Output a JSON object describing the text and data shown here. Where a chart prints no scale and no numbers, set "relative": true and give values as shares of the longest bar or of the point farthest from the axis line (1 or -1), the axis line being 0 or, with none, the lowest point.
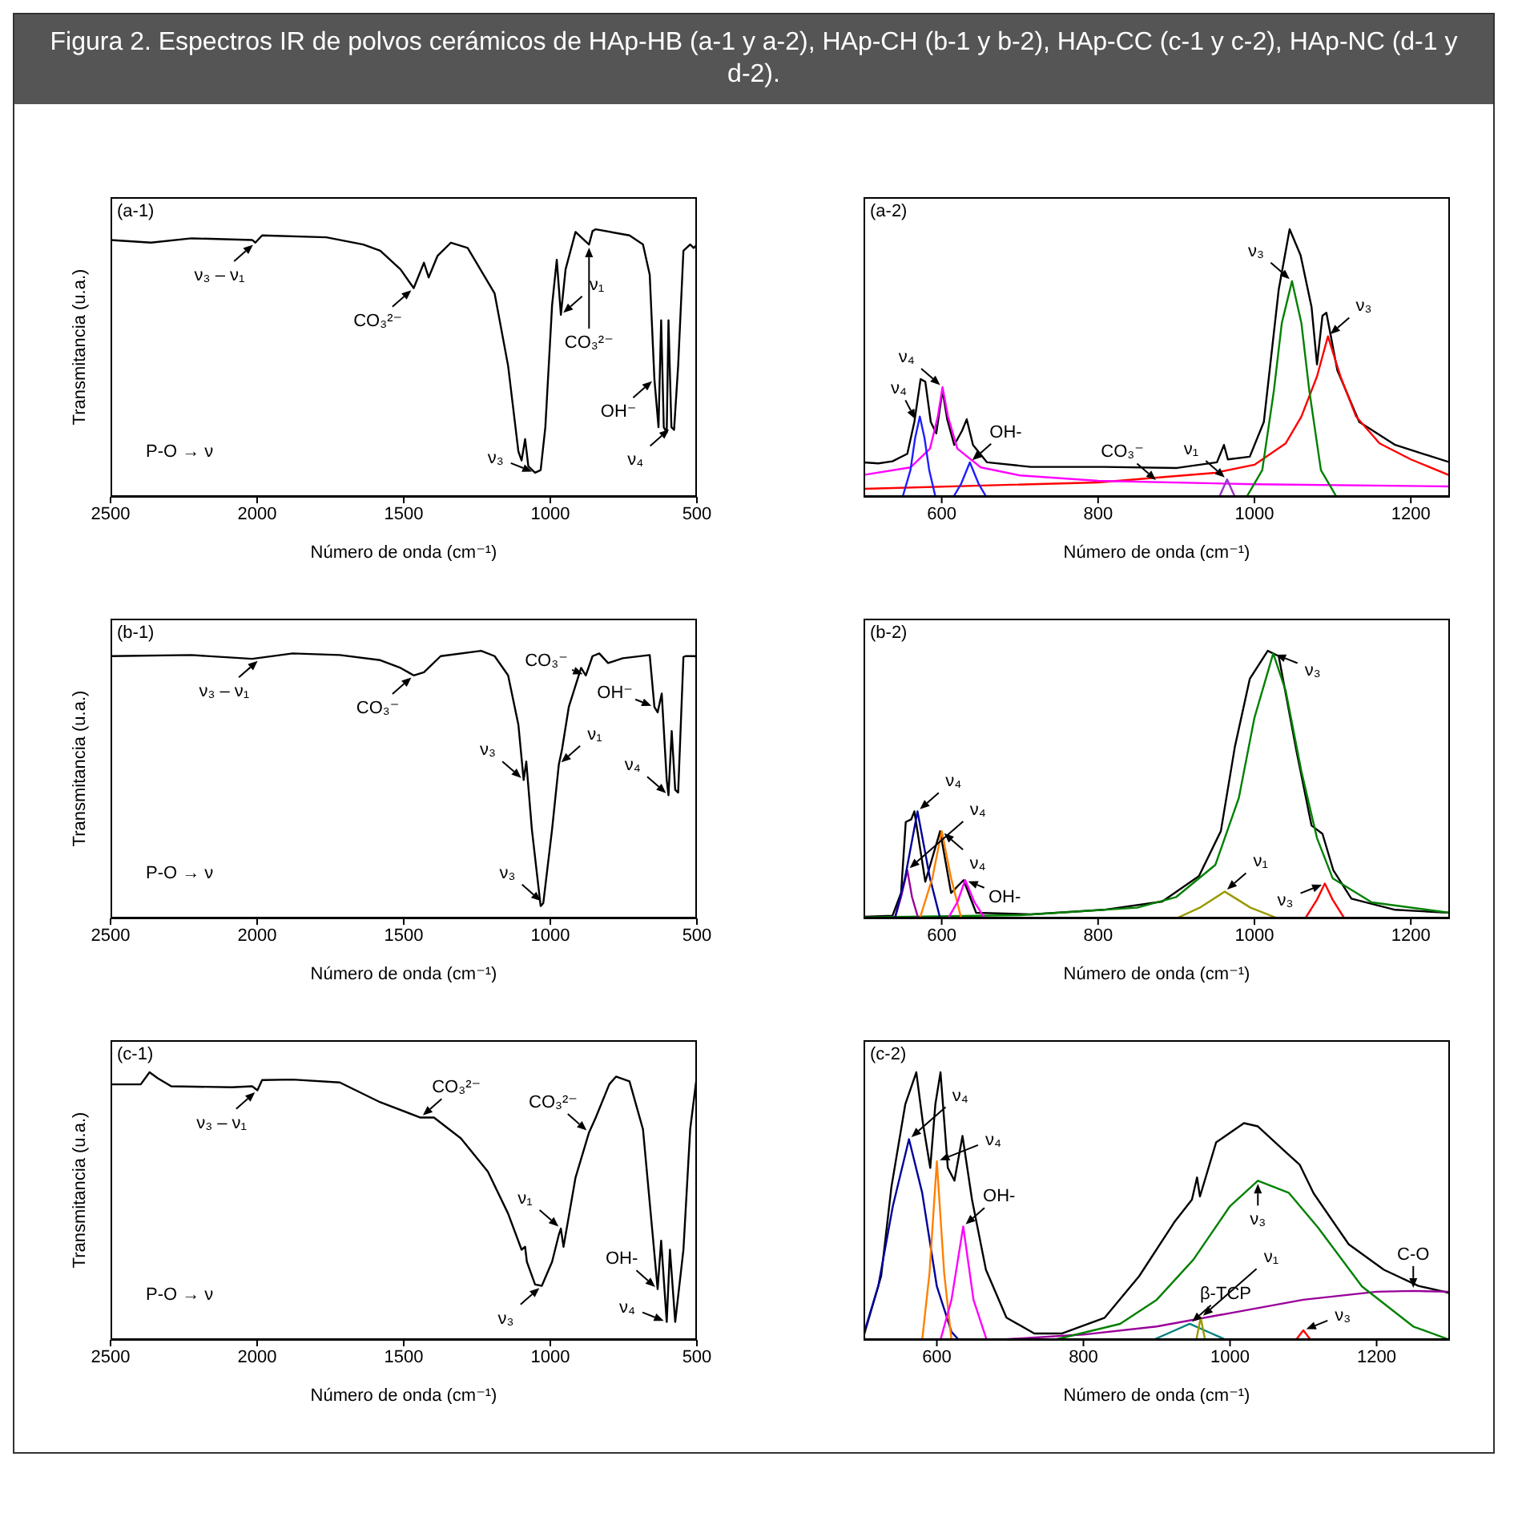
{
  "chart_data": [
    {
      "type": "line",
      "title": "Figura 2. Espectros IR de polvos cerámicos de HAp-HB (a-1 y a-2), HAp-CH (b-1 y b-2), HAp-CC (c-1 y c-2), HAp-NC (d-1 y d-2).",
      "subtitle": "(a-1)",
      "xlabel": "Número de onda (cm⁻¹)",
      "ylabel": "Transmitancia (u.a.)",
      "relative": true,
      "tick_labels": "x",
      "xlim": [
        2500,
        500
      ],
      "xticks": [
        2500,
        2000,
        1500,
        1000,
        500
      ],
      "x": [
        2500,
        2362,
        2224,
        2017,
        2006,
        1983,
        1764,
        1638,
        1580,
        1511,
        1466,
        1431,
        1415,
        1385,
        1339,
        1282,
        1190,
        1144,
        1109,
        1098,
        1086,
        1075,
        1052,
        1033,
        1017,
        994,
        978,
        964,
        948,
        914,
        891,
        868,
        856,
        845,
        730,
        684,
        661,
        645,
        631,
        622,
        613,
        603,
        597,
        587,
        578,
        564,
        546,
        523,
        511,
        500
      ],
      "series": [
        {
          "color": "#000000",
          "values": [
            0.96,
            0.95,
            0.966,
            0.96,
            0.95,
            0.977,
            0.97,
            0.943,
            0.92,
            0.85,
            0.78,
            0.875,
            0.82,
            0.9,
            0.95,
            0.93,
            0.76,
            0.49,
            0.17,
            0.136,
            0.216,
            0.114,
            0.09,
            0.1,
            0.26,
            0.716,
            0.886,
            0.68,
            0.85,
            0.99,
            0.966,
            0.943,
            0.993,
            1.0,
            0.977,
            0.943,
            0.83,
            0.44,
            0.26,
            0.66,
            0.26,
            0.24,
            0.66,
            0.26,
            0.25,
            0.49,
            0.92,
            0.943,
            0.93,
            0.943
          ]
        }
      ],
      "annotations": [
        {
          "text": "ν₃ – ν₁",
          "x": 2006,
          "y": 0.95
        },
        {
          "text": "CO₃²⁻",
          "x": 1466,
          "y": 0.78
        },
        {
          "text": "ν₃",
          "x": 1052,
          "y": 0.09
        },
        {
          "text": "ν₁",
          "x": 964,
          "y": 0.68
        },
        {
          "text": "CO₃²⁻",
          "x": 868,
          "y": 0.943
        },
        {
          "text": "OH⁻",
          "x": 645,
          "y": 0.44
        },
        {
          "text": "ν₄",
          "x": 587,
          "y": 0.26
        },
        "P-O → ν"
      ]
    },
    {
      "type": "line",
      "subtitle": "(a-2)",
      "xlabel": "Número de onda (cm⁻¹)",
      "relative": true,
      "tick_labels": "x",
      "xlim": [
        500,
        1250
      ],
      "xticks": [
        600,
        800,
        1000,
        1200
      ],
      "series": [
        {
          "color": "#000000",
          "x": [
            500,
            519,
            537,
            556,
            565,
            573,
            579,
            586,
            593,
            601,
            607,
            616,
            626,
            632,
            640,
            658,
            714,
            807,
            901,
            952,
            961,
            966,
            994,
            1012,
            1031,
            1045,
            1059,
            1073,
            1080,
            1087,
            1092,
            1106,
            1134,
            1180,
            1250
          ],
          "values": [
            0.129,
            0.125,
            0.133,
            0.161,
            0.28,
            0.44,
            0.43,
            0.28,
            0.237,
            0.398,
            0.29,
            0.194,
            0.247,
            0.29,
            0.194,
            0.129,
            0.112,
            0.112,
            0.108,
            0.129,
            0.194,
            0.14,
            0.15,
            0.28,
            0.774,
            1.0,
            0.903,
            0.71,
            0.495,
            0.677,
            0.688,
            0.473,
            0.28,
            0.194,
            0.129
          ]
        },
        {
          "color": "#ff0000",
          "x": [
            500,
            800,
            950,
            1000,
            1040,
            1060,
            1080,
            1094,
            1110,
            1130,
            1160,
            1200,
            1250
          ],
          "values": [
            0.03,
            0.054,
            0.09,
            0.12,
            0.2,
            0.3,
            0.45,
            0.6,
            0.45,
            0.3,
            0.2,
            0.14,
            0.08
          ]
        },
        {
          "color": "#ff00ff",
          "x": [
            500,
            560,
            585,
            595,
            601,
            608,
            620,
            650,
            700,
            800,
            1000,
            1250
          ],
          "values": [
            0.082,
            0.11,
            0.18,
            0.3,
            0.41,
            0.3,
            0.18,
            0.11,
            0.08,
            0.06,
            0.047,
            0.039
          ]
        },
        {
          "color": "#1f1fff",
          "x": [
            550,
            560,
            566,
            572,
            578,
            584,
            592
          ],
          "values": [
            0,
            0.1,
            0.22,
            0.3,
            0.22,
            0.1,
            0
          ]
        },
        {
          "color": "#1f1fff",
          "x": [
            615,
            625,
            636,
            647,
            657
          ],
          "values": [
            0,
            0.05,
            0.129,
            0.05,
            0
          ]
        },
        {
          "color": "#9933cc",
          "x": [
            955,
            965,
            975
          ],
          "values": [
            0,
            0.065,
            0
          ]
        },
        {
          "color": "#008000",
          "x": [
            990,
            1010,
            1025,
            1035,
            1048,
            1060,
            1070,
            1085,
            1105
          ],
          "values": [
            0,
            0.1,
            0.4,
            0.65,
            0.806,
            0.65,
            0.4,
            0.1,
            0
          ]
        }
      ],
      "annotations": [
        {
          "text": "ν₄",
          "x": 568,
          "y": 0.28
        },
        {
          "text": "ν₄",
          "x": 601,
          "y": 0.41
        },
        {
          "text": "OH-",
          "x": 636,
          "y": 0.129
        },
        {
          "text": "CO₃⁻",
          "x": 877,
          "y": 0.055
        },
        {
          "text": "ν₁",
          "x": 965,
          "y": 0.065
        },
        {
          "text": "ν₃",
          "x": 1048,
          "y": 0.806
        },
        {
          "text": "ν₃",
          "x": 1094,
          "y": 0.6
        }
      ]
    },
    {
      "type": "line",
      "subtitle": "(b-1)",
      "xlabel": "Número de onda (cm⁻¹)",
      "ylabel": "Transmitancia (u.a.)",
      "relative": true,
      "tick_labels": "x",
      "xlim": [
        2500,
        500
      ],
      "xticks": [
        2500,
        2000,
        1500,
        1000,
        500
      ],
      "x": [
        2500,
        2224,
        2017,
        1879,
        1718,
        1580,
        1511,
        1466,
        1431,
        1374,
        1236,
        1190,
        1144,
        1109,
        1091,
        1082,
        1063,
        1033,
        1024,
        994,
        971,
        960,
        937,
        895,
        879,
        856,
        833,
        803,
        753,
        661,
        645,
        634,
        620,
        603,
        597,
        586,
        574,
        564,
        546,
        539,
        505,
        500
      ],
      "series": [
        {
          "color": "#000000",
          "values": [
            0.98,
            0.984,
            0.97,
            0.99,
            0.984,
            0.965,
            0.936,
            0.908,
            0.92,
            0.98,
            1.0,
            0.98,
            0.908,
            0.724,
            0.517,
            0.586,
            0.333,
            0.046,
            0.057,
            0.333,
            0.575,
            0.632,
            0.79,
            0.936,
            0.908,
            0.98,
            0.99,
            0.954,
            0.972,
            0.984,
            0.79,
            0.77,
            0.84,
            0.517,
            0.46,
            0.7,
            0.48,
            0.47,
            0.977,
            0.98,
            0.98,
            0.97
          ]
        }
      ],
      "annotations": [
        {
          "text": "ν₃ – ν₁",
          "x": 1990,
          "y": 0.97
        },
        {
          "text": "CO₃⁻",
          "x": 1466,
          "y": 0.908
        },
        {
          "text": "ν₃",
          "x": 1091,
          "y": 0.517
        },
        {
          "text": "ν₃",
          "x": 1024,
          "y": 0.057
        },
        {
          "text": "ν₁",
          "x": 971,
          "y": 0.575
        },
        {
          "text": "CO₃⁻",
          "x": 879,
          "y": 0.908
        },
        {
          "text": "OH⁻",
          "x": 645,
          "y": 0.79
        },
        {
          "text": "ν₄",
          "x": 597,
          "y": 0.46
        },
        "P-O → ν"
      ]
    },
    {
      "type": "line",
      "subtitle": "(b-2)",
      "xlabel": "Número de onda (cm⁻¹)",
      "relative": true,
      "tick_labels": "x",
      "xlim": [
        500,
        1250
      ],
      "xticks": [
        600,
        800,
        1000,
        1200
      ],
      "series": [
        {
          "color": "#000000",
          "x": [
            500,
            537,
            548,
            554,
            561,
            565,
            579,
            598,
            612,
            628,
            644,
            714,
            807,
            882,
            929,
            957,
            975,
            994,
            1017,
            1031,
            1054,
            1073,
            1087,
            1101,
            1124,
            1180,
            1250
          ],
          "values": [
            0.006,
            0.01,
            0.095,
            0.36,
            0.37,
            0.4,
            0.137,
            0.326,
            0.095,
            0.143,
            0.021,
            0.015,
            0.032,
            0.063,
            0.158,
            0.326,
            0.642,
            0.895,
            1.0,
            0.98,
            0.621,
            0.347,
            0.316,
            0.179,
            0.074,
            0.032,
            0.021
          ]
        },
        {
          "color": "#008000",
          "x": [
            500,
            700,
            850,
            900,
            950,
            980,
            1000,
            1024,
            1040,
            1060,
            1080,
            1100,
            1150,
            1250
          ],
          "values": [
            0.004,
            0.012,
            0.04,
            0.08,
            0.2,
            0.45,
            0.75,
            0.99,
            0.85,
            0.55,
            0.3,
            0.15,
            0.06,
            0.021
          ]
        },
        {
          "color": "#999900",
          "x": [
            900,
            930,
            962,
            995,
            1030
          ],
          "values": [
            0,
            0.04,
            0.1,
            0.04,
            0
          ]
        },
        {
          "color": "#ff0000",
          "x": [
            1065,
            1080,
            1090,
            1100,
            1115
          ],
          "values": [
            0,
            0.07,
            0.13,
            0.07,
            0
          ]
        },
        {
          "color": "#990099",
          "x": [
            540,
            548,
            556,
            562,
            570
          ],
          "values": [
            0,
            0.08,
            0.18,
            0.08,
            0
          ]
        },
        {
          "color": "#000099",
          "x": [
            540,
            553,
            569,
            585,
            598
          ],
          "values": [
            0,
            0.15,
            0.4,
            0.15,
            0
          ]
        },
        {
          "color": "#ff8000",
          "x": [
            572,
            588,
            600,
            612,
            625
          ],
          "values": [
            0,
            0.15,
            0.326,
            0.15,
            0
          ]
        },
        {
          "color": "#ff00ff",
          "x": [
            608,
            620,
            630,
            642,
            655
          ],
          "values": [
            0,
            0.06,
            0.143,
            0.06,
            0
          ]
        }
      ],
      "annotations": [
        {
          "text": "ν₄",
          "x": 556,
          "y": 0.18
        },
        {
          "text": "ν₄",
          "x": 569,
          "y": 0.4
        },
        {
          "text": "ν₄",
          "x": 600,
          "y": 0.326
        },
        {
          "text": "OH-",
          "x": 630,
          "y": 0.143
        },
        {
          "text": "ν₁",
          "x": 962,
          "y": 0.1
        },
        {
          "text": "ν₃",
          "x": 1024,
          "y": 0.99
        },
        {
          "text": "ν₃",
          "x": 1090,
          "y": 0.13
        }
      ]
    },
    {
      "type": "line",
      "subtitle": "(c-1)",
      "xlabel": "Número de onda (cm⁻¹)",
      "ylabel": "Transmitancia (u.a.)",
      "relative": true,
      "tick_labels": "x",
      "xlim": [
        2500,
        500
      ],
      "xticks": [
        2500,
        2000,
        1500,
        1000,
        500
      ],
      "x": [
        2500,
        2397,
        2367,
        2339,
        2293,
        2086,
        2017,
        1999,
        1983,
        1879,
        1718,
        1580,
        1443,
        1397,
        1305,
        1213,
        1144,
        1098,
        1086,
        1080,
        1052,
        1029,
        994,
        971,
        964,
        955,
        914,
        868,
        845,
        799,
        776,
        730,
        684,
        650,
        634,
        622,
        603,
        592,
        574,
        546,
        523,
        500
      ],
      "series": [
        {
          "color": "#000000",
          "values": [
            0.955,
            0.955,
            1.0,
            0.978,
            0.948,
            0.944,
            0.948,
            0.933,
            0.971,
            0.973,
            0.962,
            0.888,
            0.831,
            0.831,
            0.753,
            0.629,
            0.472,
            0.337,
            0.348,
            0.292,
            0.207,
            0.202,
            0.292,
            0.393,
            0.416,
            0.348,
            0.607,
            0.775,
            0.831,
            0.955,
            0.984,
            0.966,
            0.787,
            0.382,
            0.19,
            0.371,
            0.067,
            0.337,
            0.067,
            0.337,
            0.787,
            0.989
          ]
        }
      ],
      "annotations": [
        {
          "text": "ν₃ – ν₁",
          "x": 1999,
          "y": 0.933
        },
        {
          "text": "CO₃²⁻",
          "x": 1443,
          "y": 0.831
        },
        {
          "text": "ν₃",
          "x": 1029,
          "y": 0.202
        },
        {
          "text": "ν₁",
          "x": 964,
          "y": 0.416
        },
        {
          "text": "CO₃²⁻",
          "x": 868,
          "y": 0.775
        },
        {
          "text": "OH-",
          "x": 634,
          "y": 0.19
        },
        {
          "text": "ν₄",
          "x": 603,
          "y": 0.067
        },
        "P-O → ν"
      ]
    },
    {
      "type": "line",
      "subtitle": "(c-2)",
      "xlabel": "Número de onda (cm⁻¹)",
      "relative": true,
      "tick_labels": "x",
      "xlim": [
        500,
        1300
      ],
      "xticks": [
        600,
        800,
        1000,
        1200
      ],
      "series": [
        {
          "color": "#000000",
          "x": [
            500,
            524,
            538,
            557,
            572,
            581,
            591,
            598,
            605,
            615,
            624,
            635,
            648,
            667,
            695,
            733,
            771,
            829,
            876,
            924,
            948,
            955,
            959,
            981,
            1019,
            1038,
            1076,
            1095,
            1114,
            1162,
            1210,
            1257,
            1300
          ],
          "values": [
            0.012,
            0.238,
            0.571,
            0.881,
            1.0,
            0.81,
            0.643,
            0.881,
            1.0,
            0.643,
            0.595,
            0.762,
            0.524,
            0.262,
            0.083,
            0.024,
            0.024,
            0.083,
            0.238,
            0.44,
            0.524,
            0.607,
            0.536,
            0.738,
            0.81,
            0.798,
            0.702,
            0.655,
            0.548,
            0.357,
            0.262,
            0.202,
            0.175
          ]
        },
        {
          "color": "#000099",
          "x": [
            500,
            520,
            540,
            562,
            580,
            600,
            620,
            630
          ],
          "values": [
            0.02,
            0.2,
            0.5,
            0.75,
            0.55,
            0.2,
            0.03,
            0
          ]
        },
        {
          "color": "#ff8000",
          "x": [
            580,
            590,
            600,
            610,
            620
          ],
          "values": [
            0,
            0.25,
            0.667,
            0.25,
            0
          ]
        },
        {
          "color": "#ff00ff",
          "x": [
            605,
            620,
            636,
            650,
            668
          ],
          "values": [
            0,
            0.15,
            0.424,
            0.15,
            0
          ]
        },
        {
          "color": "#990099",
          "x": [
            680,
            800,
            900,
            1000,
            1100,
            1200,
            1250,
            1300
          ],
          "values": [
            0,
            0.02,
            0.05,
            0.1,
            0.15,
            0.18,
            0.183,
            0.18
          ]
        },
        {
          "color": "#008000",
          "x": [
            760,
            850,
            900,
            950,
            1000,
            1038,
            1080,
            1120,
            1180,
            1250,
            1300
          ],
          "values": [
            0,
            0.06,
            0.15,
            0.3,
            0.5,
            0.595,
            0.55,
            0.42,
            0.2,
            0.05,
            0
          ]
        },
        {
          "color": "#008080",
          "x": [
            895,
            920,
            945,
            970,
            995
          ],
          "values": [
            0,
            0.03,
            0.06,
            0.03,
            0
          ]
        },
        {
          "color": "#999900",
          "x": [
            954,
            960,
            966
          ],
          "values": [
            0,
            0.083,
            0
          ]
        },
        {
          "color": "#ff0000",
          "x": [
            1090,
            1100,
            1110
          ],
          "values": [
            0,
            0.036,
            0
          ]
        }
      ],
      "annotations": [
        {
          "text": "ν₄",
          "x": 562,
          "y": 0.75
        },
        {
          "text": "ν₄",
          "x": 600,
          "y": 0.667
        },
        {
          "text": "OH-",
          "x": 636,
          "y": 0.424
        },
        {
          "text": "β-TCP",
          "x": 945,
          "y": 0.06
        },
        {
          "text": "ν₁",
          "x": 960,
          "y": 0.083
        },
        {
          "text": "ν₃",
          "x": 1038,
          "y": 0.595
        },
        {
          "text": "ν₃",
          "x": 1100,
          "y": 0.036
        },
        {
          "text": "C-O",
          "x": 1250,
          "y": 0.183
        }
      ]
    }
  ]
}
